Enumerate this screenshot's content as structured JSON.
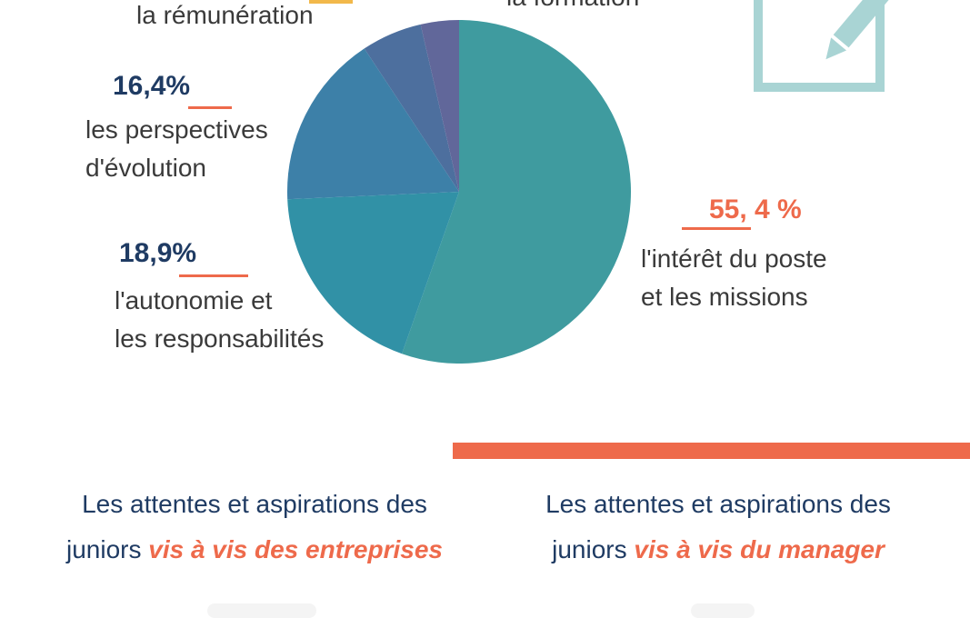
{
  "chart_data": {
    "type": "pie",
    "slices": [
      {
        "label": "l'intérêt du poste\net les missions",
        "value_label": "55, 4 %",
        "value": 55.4,
        "color": "#3f9b9f"
      },
      {
        "label": "l'autonomie et\nles responsabilités",
        "value_label": "18,9%",
        "value": 18.9,
        "color": "#3191a6"
      },
      {
        "label": "les perspectives\nd'évolution",
        "value_label": "16,4%",
        "value": 16.4,
        "color": "#3d80a8"
      },
      {
        "label": "la rémunération",
        "value_label": "",
        "value": 5.7,
        "color": "#4d6f9e"
      },
      {
        "label": "la formation",
        "value_label": "",
        "value": 3.6,
        "color": "#61679a"
      }
    ]
  },
  "colors": {
    "accent": "#ee6a4b",
    "navy": "#1f3b63",
    "icon": "#a9d4d4"
  },
  "icons": {
    "form": "clipboard-pencil-icon"
  },
  "headings": {
    "left": {
      "prefix": "Les attentes et aspirations des",
      "line2_prefix": "juniors ",
      "emphasis": "vis à vis des entreprises"
    },
    "right": {
      "prefix": "Les attentes et aspirations des",
      "line2_prefix": "juniors ",
      "emphasis": "vis à vis du manager"
    }
  }
}
